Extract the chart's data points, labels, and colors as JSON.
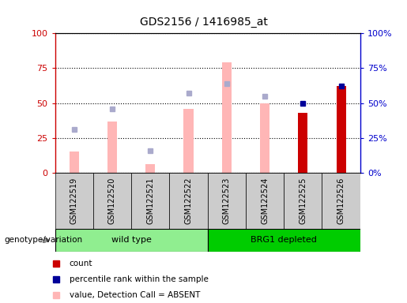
{
  "title": "GDS2156 / 1416985_at",
  "samples": [
    "GSM122519",
    "GSM122520",
    "GSM122521",
    "GSM122522",
    "GSM122523",
    "GSM122524",
    "GSM122525",
    "GSM122526"
  ],
  "value_absent": [
    15,
    37,
    6,
    46,
    79,
    50,
    0,
    62
  ],
  "rank_absent": [
    31,
    46,
    16,
    57,
    64,
    55,
    0,
    0
  ],
  "count": [
    0,
    0,
    0,
    0,
    0,
    0,
    43,
    62
  ],
  "percentile_rank": [
    0,
    0,
    0,
    0,
    0,
    0,
    50,
    62
  ],
  "has_count": [
    false,
    false,
    false,
    false,
    false,
    false,
    true,
    true
  ],
  "has_percentile": [
    false,
    false,
    false,
    false,
    false,
    false,
    true,
    true
  ],
  "has_value_absent": [
    true,
    true,
    true,
    true,
    true,
    true,
    false,
    true
  ],
  "has_rank_absent": [
    true,
    true,
    true,
    true,
    true,
    true,
    false,
    false
  ],
  "ylim": [
    0,
    100
  ],
  "yticks": [
    0,
    25,
    50,
    75,
    100
  ],
  "color_value_absent": "#FFB6B6",
  "color_rank_absent": "#AAAACC",
  "color_count": "#CC0000",
  "color_percentile": "#000099",
  "color_left_axis": "#CC0000",
  "color_right_axis": "#0000CC",
  "group_wt_color": "#90EE90",
  "group_brg_color": "#00CC00",
  "background_color": "#CCCCCC",
  "bar_width": 0.25,
  "fig_width": 5.15,
  "fig_height": 3.84,
  "dpi": 100
}
